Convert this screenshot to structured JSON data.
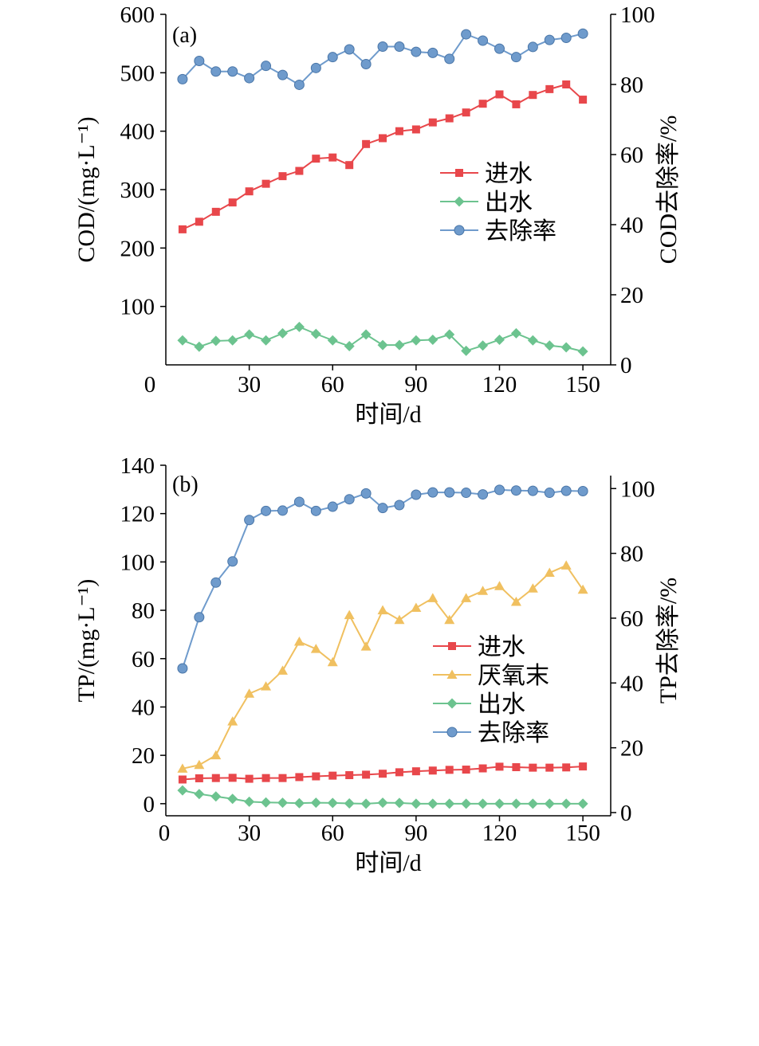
{
  "colors": {
    "influent": "#e8474b",
    "anaerobic_end": "#f0c060",
    "effluent": "#6cc38f",
    "removal": "#6f9bcc"
  },
  "chart_data": [
    {
      "type": "line",
      "panel_label": "(a)",
      "xlabel": "时间/d",
      "ylabel": "COD/(mg·L⁻¹)",
      "y2label": "COD去除率/%",
      "xlim": [
        0,
        160
      ],
      "ylim": [
        0,
        600
      ],
      "y2lim": [
        0,
        100
      ],
      "x_ticks": [
        "0",
        "30",
        "60",
        "90",
        "120",
        "150"
      ],
      "y_ticks": [
        "100",
        "200",
        "300",
        "400",
        "500",
        "600"
      ],
      "y2_ticks": [
        "0",
        "20",
        "40",
        "60",
        "80",
        "100"
      ],
      "legend_position": "center-right",
      "x": [
        6,
        12,
        18,
        24,
        30,
        36,
        42,
        48,
        54,
        60,
        66,
        72,
        78,
        84,
        90,
        96,
        102,
        108,
        114,
        120,
        126,
        132,
        138,
        144,
        150
      ],
      "series": [
        {
          "name": "进水",
          "axis": "left",
          "marker": "square",
          "color_key": "influent",
          "values": [
            232,
            245,
            262,
            278,
            297,
            310,
            323,
            332,
            353,
            355,
            342,
            378,
            388,
            400,
            403,
            415,
            422,
            432,
            447,
            463,
            446,
            462,
            472,
            480,
            454
          ]
        },
        {
          "name": "出水",
          "axis": "left",
          "marker": "diamond",
          "color_key": "effluent",
          "values": [
            42,
            31,
            41,
            42,
            52,
            42,
            54,
            65,
            53,
            42,
            32,
            52,
            34,
            34,
            42,
            43,
            52,
            24,
            33,
            43,
            54,
            42,
            33,
            30,
            23
          ]
        },
        {
          "name": "去除率",
          "axis": "right",
          "marker": "circle",
          "color_key": "removal",
          "values": [
            81.5,
            86.7,
            83.7,
            83.7,
            81.8,
            85.3,
            82.7,
            79.9,
            84.7,
            87.8,
            90.0,
            85.8,
            90.8,
            90.8,
            89.3,
            89.0,
            87.3,
            94.3,
            92.5,
            90.2,
            87.8,
            90.7,
            92.7,
            93.3,
            94.5
          ]
        }
      ]
    },
    {
      "type": "line",
      "panel_label": "(b)",
      "xlabel": "时间/d",
      "ylabel": "TP/(mg·L⁻¹)",
      "y2label": "TP去除率/%",
      "xlim": [
        0,
        160
      ],
      "ylim": [
        -5,
        140
      ],
      "y2lim": [
        0,
        104
      ],
      "x_ticks": [
        "0",
        "30",
        "60",
        "90",
        "120",
        "150"
      ],
      "y_ticks": [
        "0",
        "20",
        "40",
        "60",
        "80",
        "100",
        "120",
        "140"
      ],
      "y2_ticks": [
        "0",
        "20",
        "40",
        "60",
        "80",
        "100"
      ],
      "legend_position": "center-right",
      "x": [
        6,
        12,
        18,
        24,
        30,
        36,
        42,
        48,
        54,
        60,
        66,
        72,
        78,
        84,
        90,
        96,
        102,
        108,
        114,
        120,
        126,
        132,
        138,
        144,
        150
      ],
      "series": [
        {
          "name": "进水",
          "axis": "left",
          "marker": "square",
          "color_key": "influent",
          "values": [
            10,
            10.5,
            10.6,
            10.7,
            10.3,
            10.6,
            10.6,
            11.0,
            11.3,
            11.6,
            11.8,
            12.0,
            12.4,
            13.0,
            13.4,
            13.7,
            14.0,
            14.1,
            14.6,
            15.3,
            15.1,
            14.9,
            14.9,
            15.0,
            15.4
          ]
        },
        {
          "name": "厌氧末",
          "axis": "left",
          "marker": "triangle",
          "color_key": "anaerobic_end",
          "values": [
            14.5,
            16,
            20,
            34,
            45.5,
            48.5,
            55,
            67,
            64,
            58.5,
            78,
            65,
            80,
            76,
            81,
            85,
            76,
            85,
            88,
            90,
            83.5,
            89,
            95.5,
            98.5,
            88.5
          ]
        },
        {
          "name": "出水",
          "axis": "left",
          "marker": "diamond",
          "color_key": "effluent",
          "values": [
            5.5,
            4,
            3,
            2,
            0.8,
            0.5,
            0.4,
            0.2,
            0.4,
            0.3,
            0.1,
            0,
            0.4,
            0.3,
            0,
            0,
            0,
            0,
            0,
            0,
            0,
            0,
            0,
            0,
            0
          ]
        },
        {
          "name": "去除率",
          "axis": "right",
          "marker": "circle",
          "color_key": "removal",
          "values": [
            44.5,
            60.3,
            71.0,
            77.5,
            90.3,
            93.1,
            93.2,
            95.9,
            93.1,
            94.4,
            96.7,
            98.5,
            94.0,
            94.9,
            98.1,
            98.8,
            98.8,
            98.7,
            98.2,
            99.6,
            99.4,
            99.3,
            98.7,
            99.3,
            99.2
          ]
        }
      ]
    }
  ]
}
